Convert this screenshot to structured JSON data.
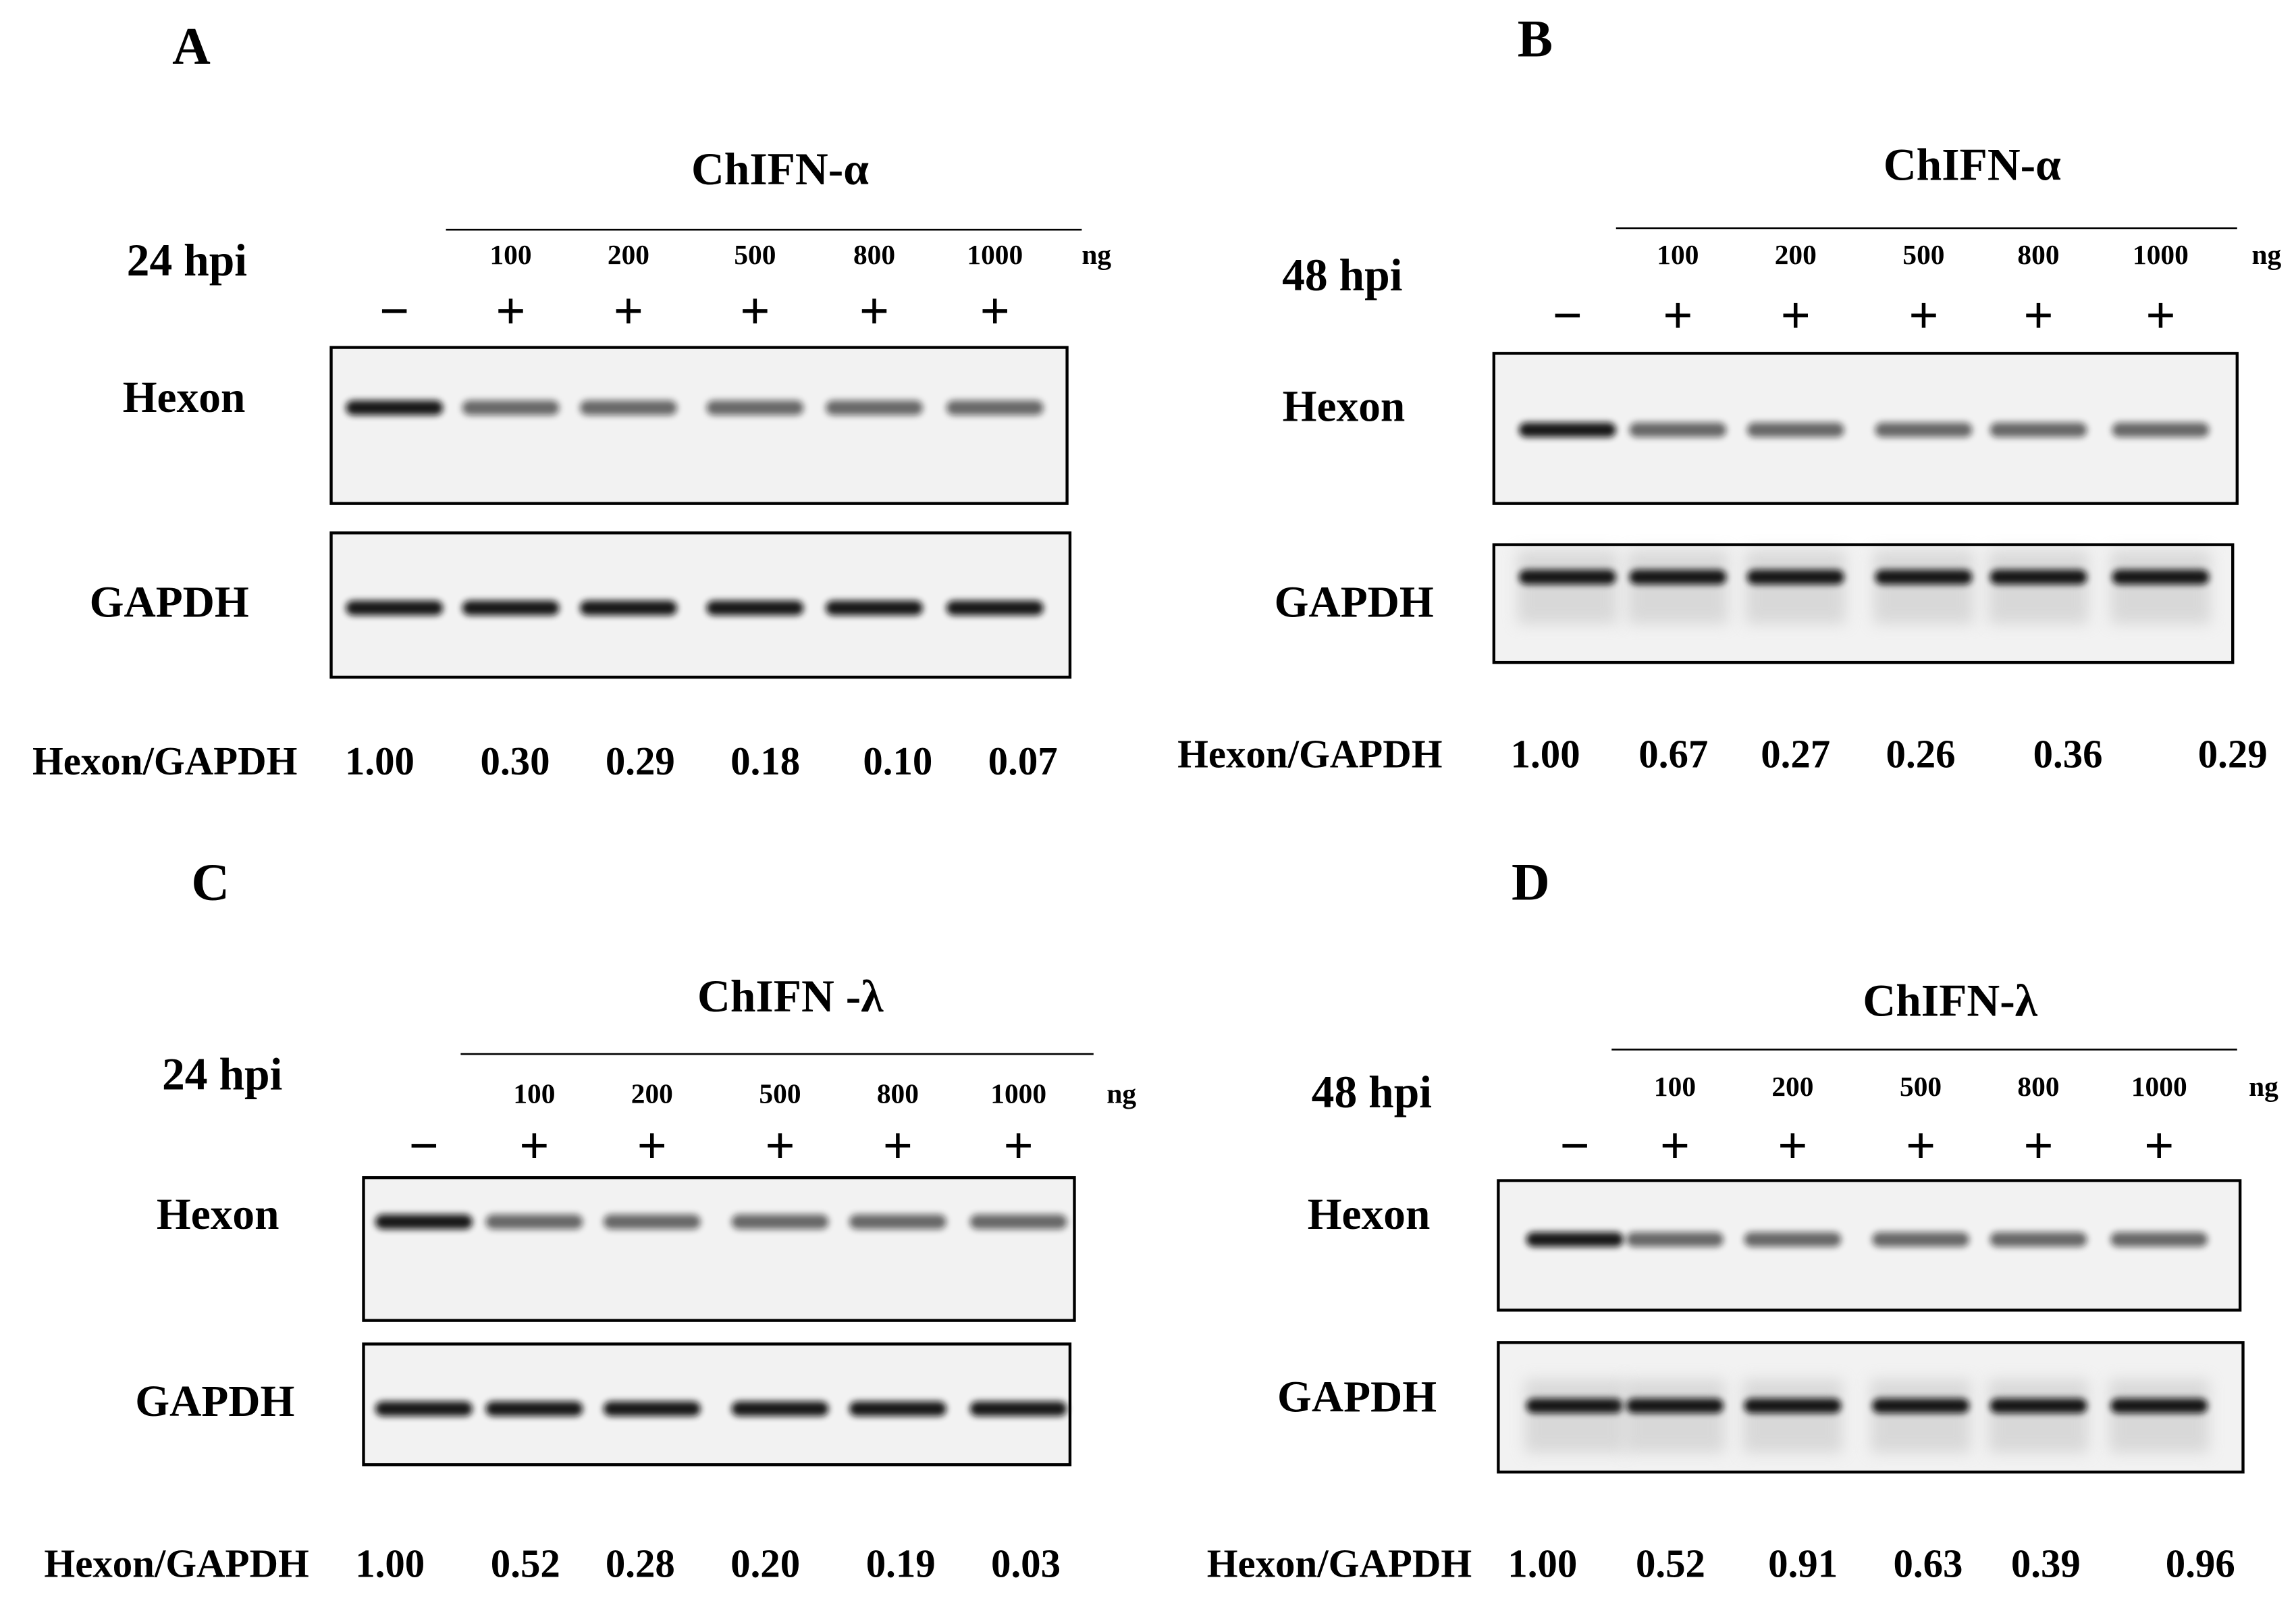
{
  "panels": [
    {
      "letter": "A",
      "treatment": "ChIFN-α",
      "time": "24 hpi",
      "unit": "ng",
      "doses": [
        "100",
        "200",
        "500",
        "800",
        "1000"
      ],
      "signs": [
        "−",
        "+",
        "+",
        "+",
        "+",
        "+"
      ],
      "rows": [
        "Hexon",
        "GAPDH"
      ],
      "ratio_label": "Hexon/GAPDH",
      "ratios": [
        "1.00",
        "0.30",
        "0.29",
        "0.18",
        "0.10",
        "0.07"
      ]
    },
    {
      "letter": "B",
      "treatment": "ChIFN-α",
      "time": "48 hpi",
      "unit": "ng",
      "doses": [
        "100",
        "200",
        "500",
        "800",
        "1000"
      ],
      "signs": [
        "−",
        "+",
        "+",
        "+",
        "+",
        "+"
      ],
      "rows": [
        "Hexon",
        "GAPDH"
      ],
      "ratio_label": "Hexon/GAPDH",
      "ratios": [
        "1.00",
        "0.67",
        "0.27",
        "0.26",
        "0.36",
        "0.29"
      ]
    },
    {
      "letter": "C",
      "treatment": "ChIFN -λ",
      "time": "24 hpi",
      "unit": "ng",
      "doses": [
        "100",
        "200",
        "500",
        "800",
        "1000"
      ],
      "signs": [
        "−",
        "+",
        "+",
        "+",
        "+",
        "+"
      ],
      "rows": [
        "Hexon",
        "GAPDH"
      ],
      "ratio_label": "Hexon/GAPDH",
      "ratios": [
        "1.00",
        "0.52",
        "0.28",
        "0.20",
        "0.19",
        "0.03"
      ]
    },
    {
      "letter": "D",
      "treatment": "ChIFN-λ",
      "time": "48 hpi",
      "unit": "ng",
      "doses": [
        "100",
        "200",
        "500",
        "800",
        "1000"
      ],
      "signs": [
        "−",
        "+",
        "+",
        "+",
        "+",
        "+"
      ],
      "rows": [
        "Hexon",
        "GAPDH"
      ],
      "ratio_label": "Hexon/GAPDH",
      "ratios": [
        "1.00",
        "0.52",
        "0.91",
        "0.63",
        "0.39",
        "0.96"
      ]
    }
  ]
}
